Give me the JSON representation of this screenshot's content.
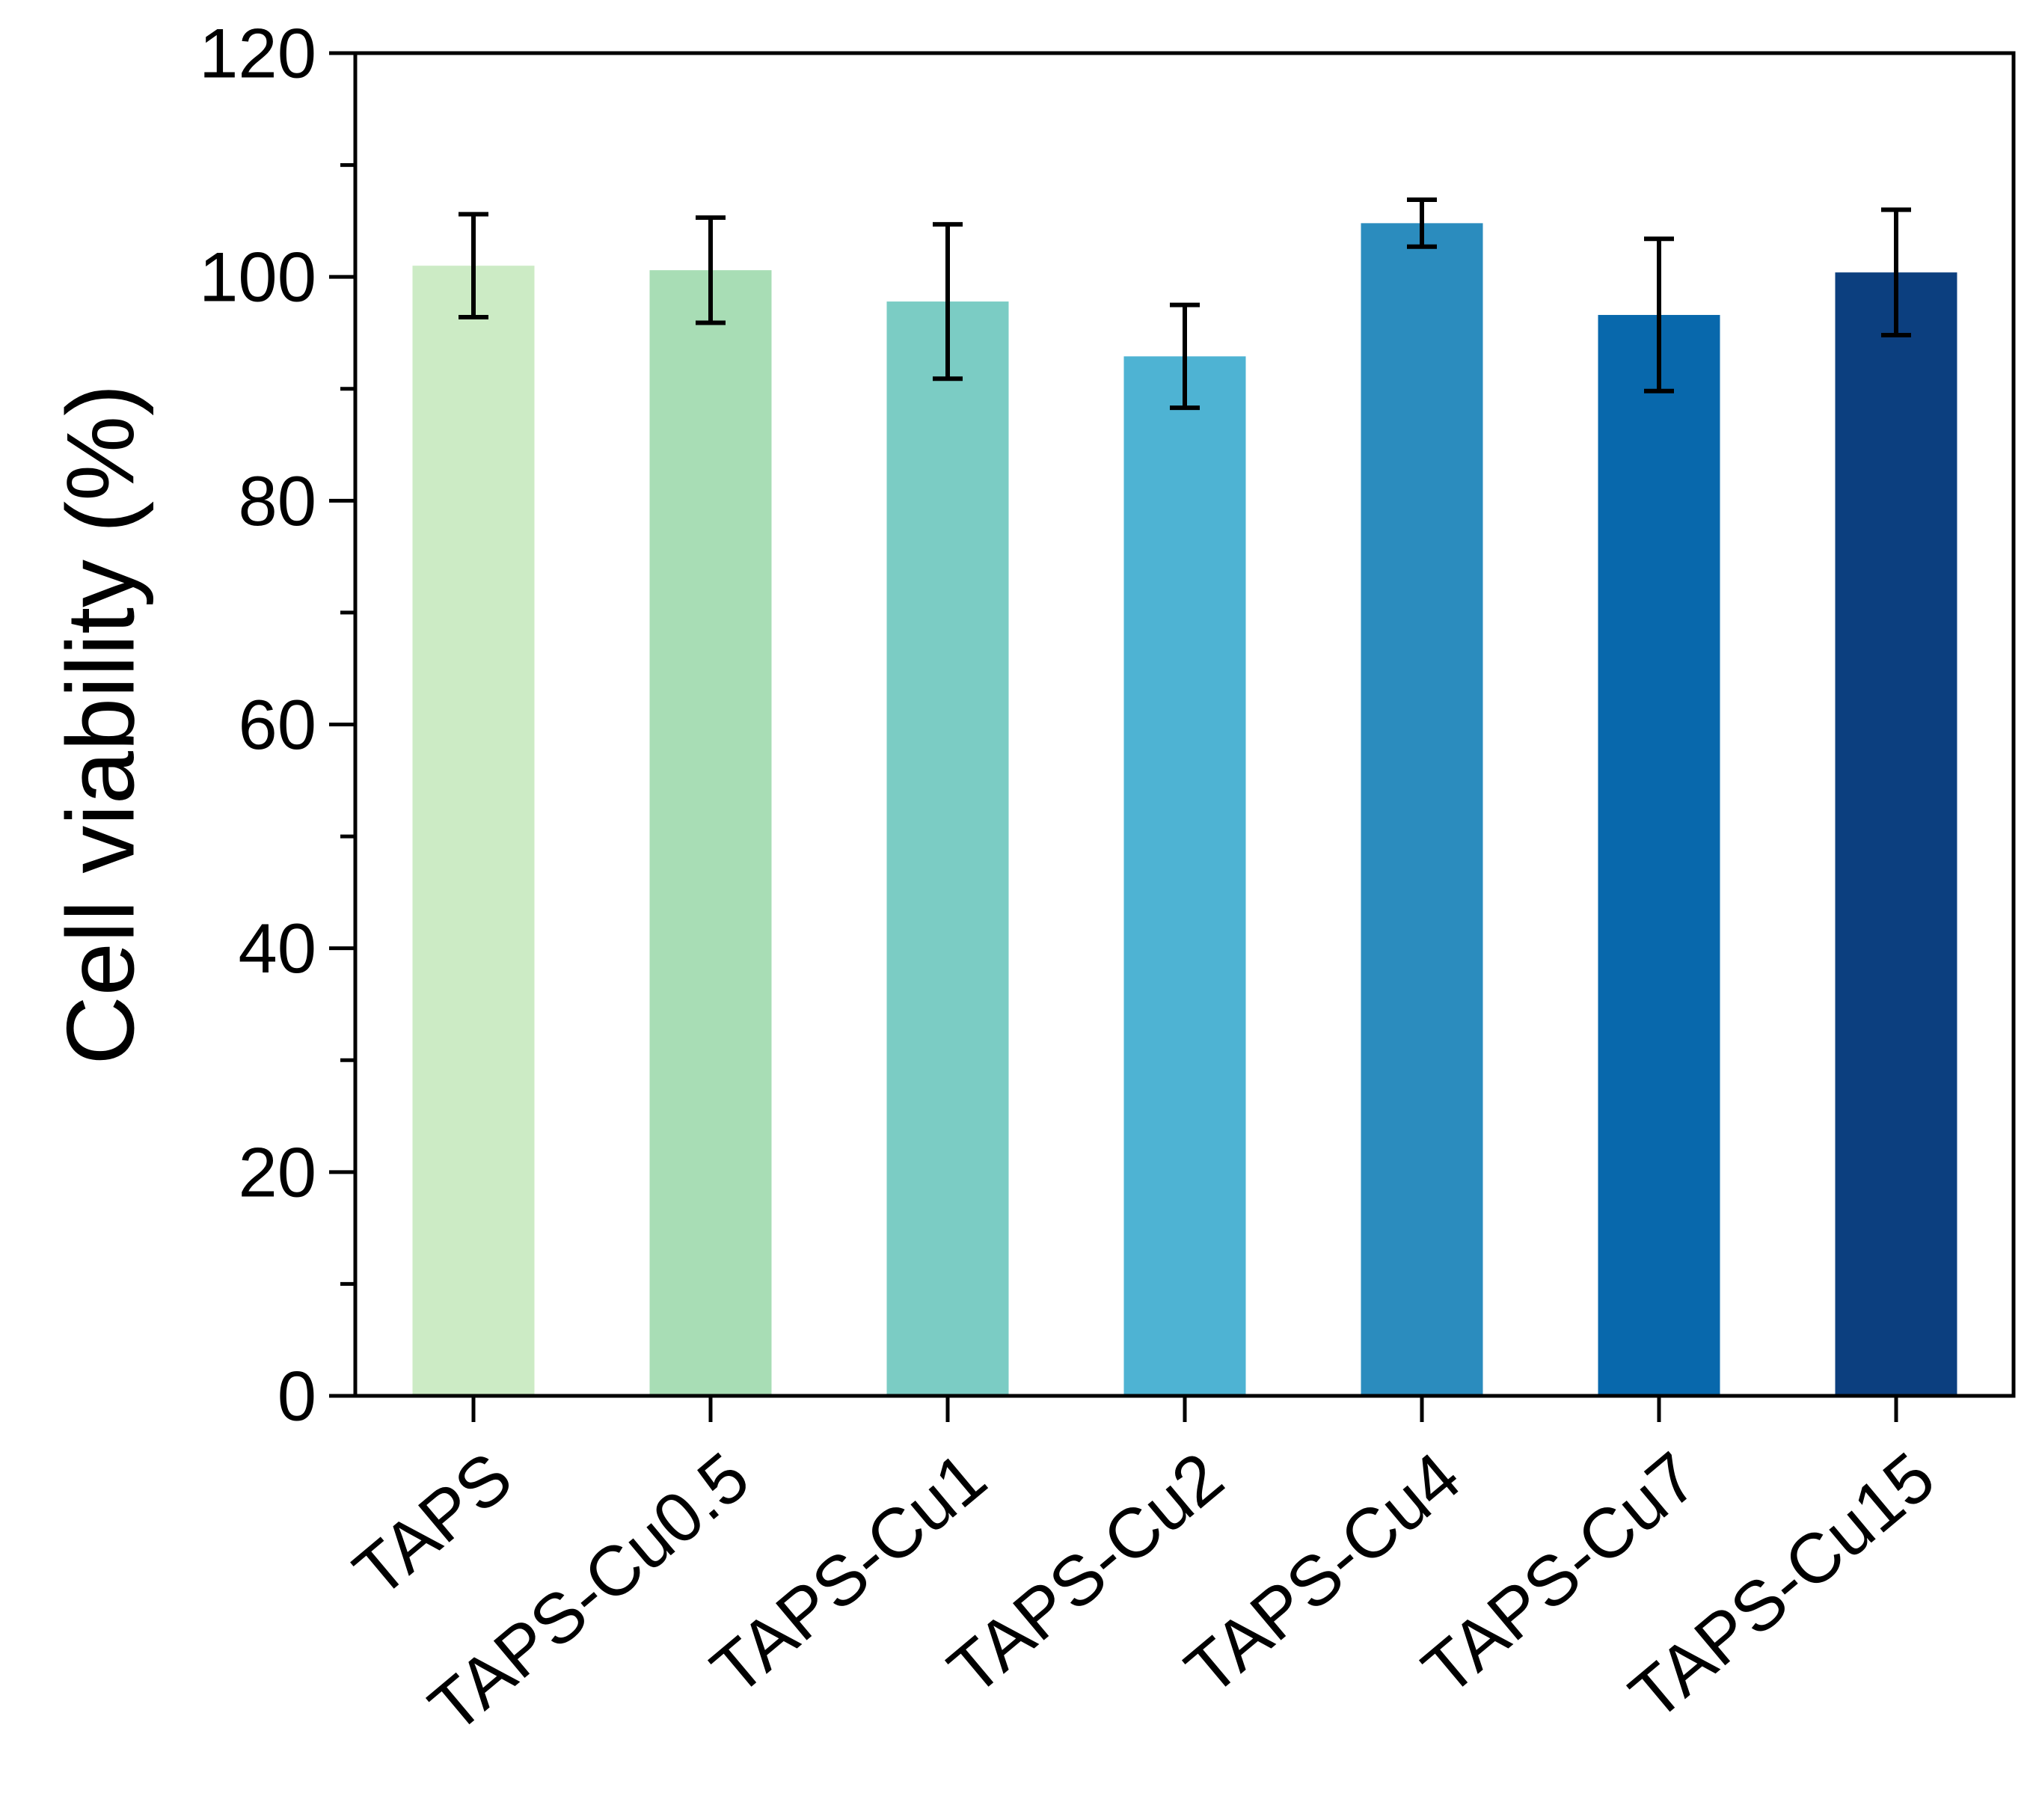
{
  "chart_data": {
    "type": "bar",
    "ylabel": "Cell viability (%)",
    "xlabel": "",
    "ylim": [
      0,
      120
    ],
    "y_major_ticks": [
      "0",
      "20",
      "40",
      "60",
      "80",
      "100",
      "120"
    ],
    "y_minor_tick_step": 10,
    "grid": false,
    "legend": "none",
    "categories": [
      "TAPS",
      "TAPS-Cu0.5",
      "TAPS-Cu1",
      "TAPS-Cu2",
      "TAPS-Cu4",
      "TAPS-Cu7",
      "TAPS-Cu15"
    ],
    "values": [
      101.0,
      100.6,
      97.8,
      92.9,
      104.8,
      96.6,
      100.4
    ],
    "errors": [
      4.6,
      4.7,
      6.9,
      4.6,
      2.1,
      6.8,
      5.6
    ],
    "colors": [
      "#ccebc5",
      "#a8ddb5",
      "#7bccc4",
      "#4eb3d3",
      "#2b8cbe",
      "#0868ac",
      "#0c3f7f"
    ]
  }
}
